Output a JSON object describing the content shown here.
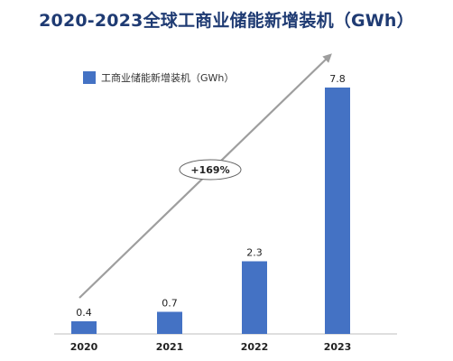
{
  "chart_data": {
    "type": "bar",
    "title": "2020-2023全球工商业储能新增装机（GWh）",
    "categories": [
      "2020",
      "2021",
      "2022",
      "2023"
    ],
    "series": [
      {
        "name": "工商业储能新增装机（GWh）",
        "values": [
          0.4,
          0.7,
          2.3,
          7.8
        ]
      }
    ],
    "data_labels": [
      "0.4",
      "0.7",
      "2.3",
      "7.8"
    ],
    "annotation": "+169%",
    "ylim": [
      0,
      7.8
    ],
    "grid": false,
    "legend": "top-left",
    "colors": {
      "bar": "#4472c4",
      "title": "#1f3b73",
      "arrow": "#9e9e9e"
    }
  }
}
